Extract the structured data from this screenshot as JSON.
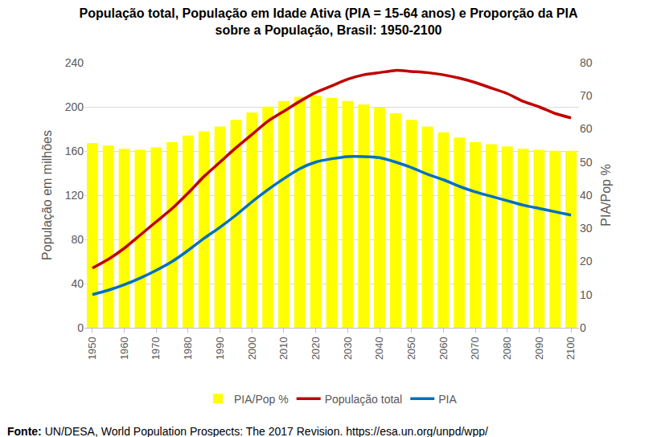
{
  "chart_data": {
    "type": "bar",
    "title": "População total, População em Idade Ativa (PIA = 15-64 anos) e Proporção da PIA\nsobre a População, Brasil: 1950-2100",
    "y_label": "População em milhões",
    "y2_label": "PIA/Pop %",
    "annotations": [
      "Fonte: UN/DESA, World Population Prospects: The 2017 Revision. https://esa.un.org/unpd/wpp/"
    ],
    "x": [
      1950,
      1955,
      1960,
      1965,
      1970,
      1975,
      1980,
      1985,
      1990,
      1995,
      2000,
      2005,
      2010,
      2015,
      2020,
      2025,
      2030,
      2035,
      2040,
      2045,
      2050,
      2055,
      2060,
      2065,
      2070,
      2075,
      2080,
      2085,
      2090,
      2095,
      2100
    ],
    "series": [
      {
        "name": "PIA/Pop %",
        "type": "bar",
        "axis": "y2",
        "color": "#ffff00",
        "values": [
          55.7,
          55,
          54,
          53.7,
          54.4,
          56,
          58,
          59.3,
          60.7,
          62.7,
          65,
          66.7,
          68.4,
          69.7,
          70,
          69.4,
          68.4,
          67.4,
          66.4,
          64.7,
          62.7,
          60.7,
          59,
          57.4,
          56,
          55.4,
          54.7,
          54,
          53.7,
          53.4,
          53.4
        ]
      },
      {
        "name": "População total",
        "type": "line",
        "color": "#c00000",
        "values": [
          54,
          62,
          72,
          84,
          96,
          108,
          122,
          137,
          150,
          163,
          175,
          187,
          196,
          205,
          213,
          219,
          225,
          229,
          231,
          233,
          232,
          231,
          229,
          226,
          222,
          217,
          212,
          205,
          200,
          194,
          190
        ]
      },
      {
        "name": "PIA",
        "type": "line",
        "color": "#0070c0",
        "values": [
          30,
          34,
          39,
          45,
          52,
          60,
          70,
          81,
          91,
          102,
          114,
          125,
          135,
          144,
          150,
          153,
          155,
          155,
          154,
          150,
          145,
          139,
          134,
          128,
          123,
          119,
          115,
          111,
          108,
          105,
          102
        ]
      }
    ],
    "xlim": [
      1947.5,
      2102.5
    ],
    "xticks": [
      1950,
      1960,
      1970,
      1980,
      1990,
      2000,
      2010,
      2020,
      2030,
      2040,
      2050,
      2060,
      2070,
      2080,
      2090,
      2100
    ],
    "ylim": [
      0,
      240
    ],
    "yticks": [
      0,
      40,
      80,
      120,
      160,
      200,
      240
    ],
    "y2lim": [
      0,
      80
    ],
    "y2ticks": [
      0,
      10,
      20,
      30,
      40,
      50,
      60,
      70,
      80
    ],
    "grid": true,
    "legend": "bottom"
  }
}
